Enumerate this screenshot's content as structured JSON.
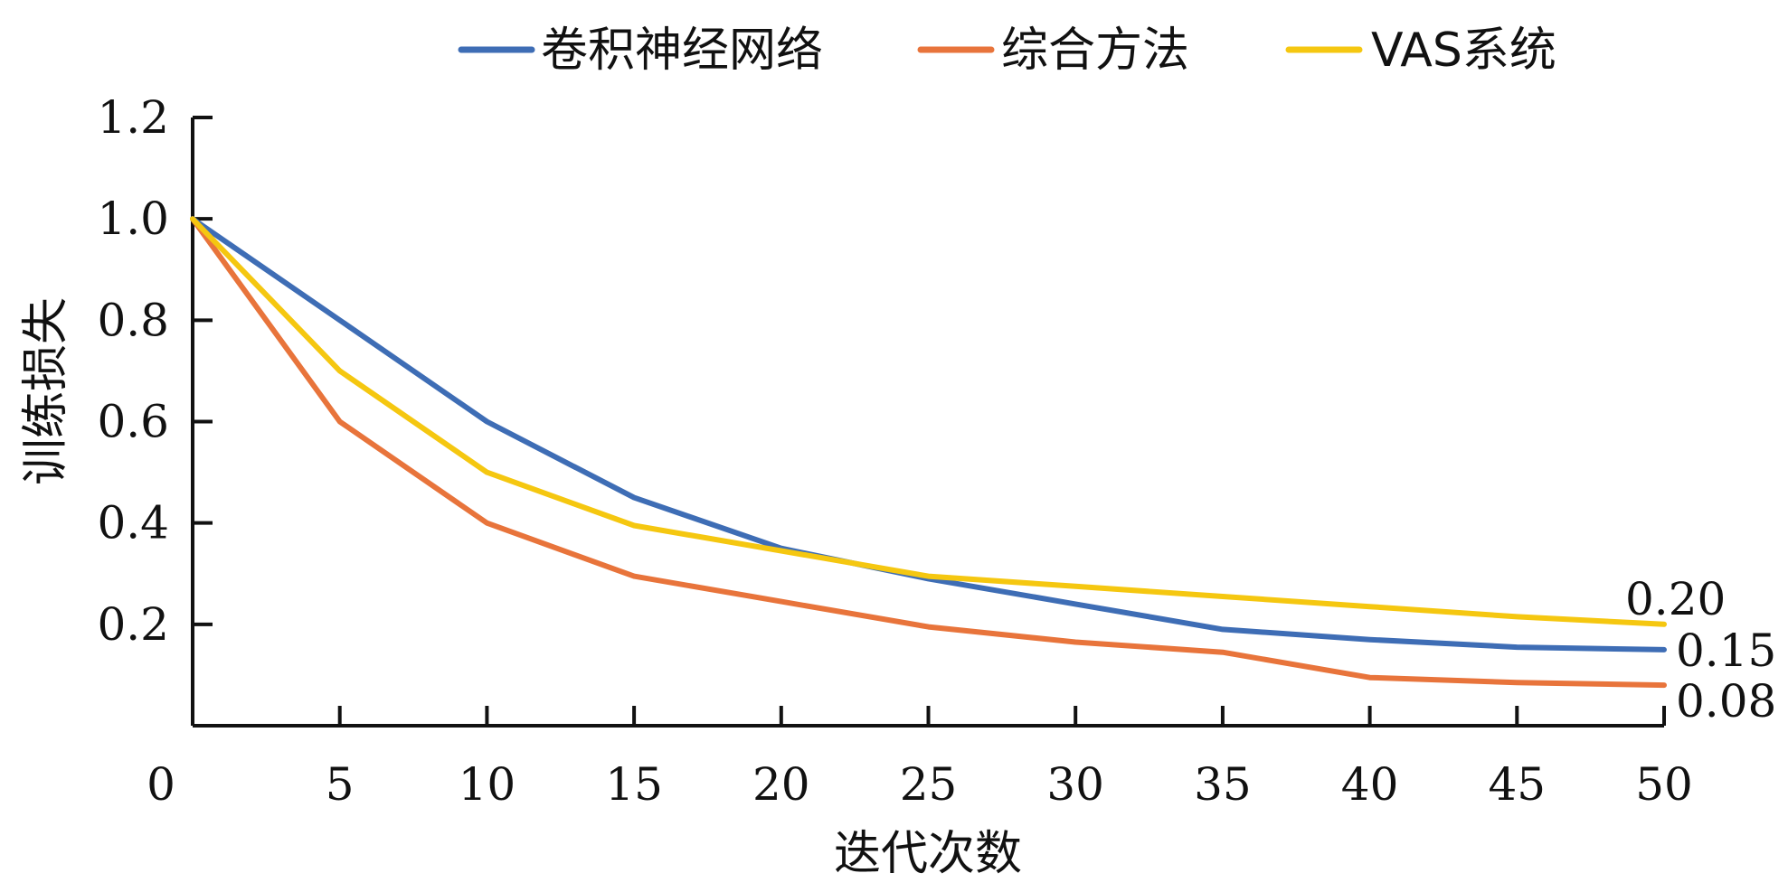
{
  "chart_data": {
    "type": "line",
    "title": "",
    "xlabel": "迭代次数",
    "ylabel": "训练损失",
    "x": [
      0,
      5,
      10,
      15,
      20,
      25,
      30,
      35,
      40,
      45,
      50
    ],
    "xticks": [
      "0",
      "5",
      "10",
      "15",
      "20",
      "25",
      "30",
      "35",
      "40",
      "45",
      "50"
    ],
    "yticks": [
      "0.2",
      "0.4",
      "0.6",
      "0.8",
      "1.0",
      "1.2"
    ],
    "xlim": [
      0,
      50
    ],
    "ylim": [
      0,
      1.2
    ],
    "grid": false,
    "legend_position": "top",
    "series": [
      {
        "name": "卷积神经网络",
        "color": "#3e6db5",
        "values": [
          1.0,
          0.8,
          0.6,
          0.45,
          0.35,
          0.29,
          0.24,
          0.19,
          0.17,
          0.155,
          0.15
        ]
      },
      {
        "name": "综合方法",
        "color": "#e8743b",
        "values": [
          1.0,
          0.6,
          0.4,
          0.295,
          0.245,
          0.195,
          0.165,
          0.145,
          0.095,
          0.085,
          0.08
        ]
      },
      {
        "name": "VAS系统",
        "color": "#f5c710",
        "values": [
          1.0,
          0.7,
          0.5,
          0.395,
          0.345,
          0.295,
          0.275,
          0.255,
          0.235,
          0.215,
          0.2
        ]
      }
    ],
    "end_labels": [
      {
        "series": "VAS系统",
        "text": "0.20"
      },
      {
        "series": "卷积神经网络",
        "text": "0.15"
      },
      {
        "series": "综合方法",
        "text": "0.08"
      }
    ]
  }
}
